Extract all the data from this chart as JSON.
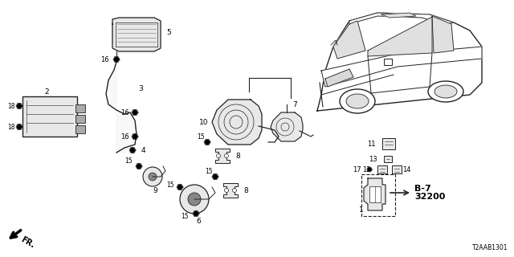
{
  "bg_color": "#ffffff",
  "diagram_code": "T2AAB1301",
  "line_color": "#222222",
  "gray_fill": "#cccccc",
  "light_gray": "#e8e8e8"
}
